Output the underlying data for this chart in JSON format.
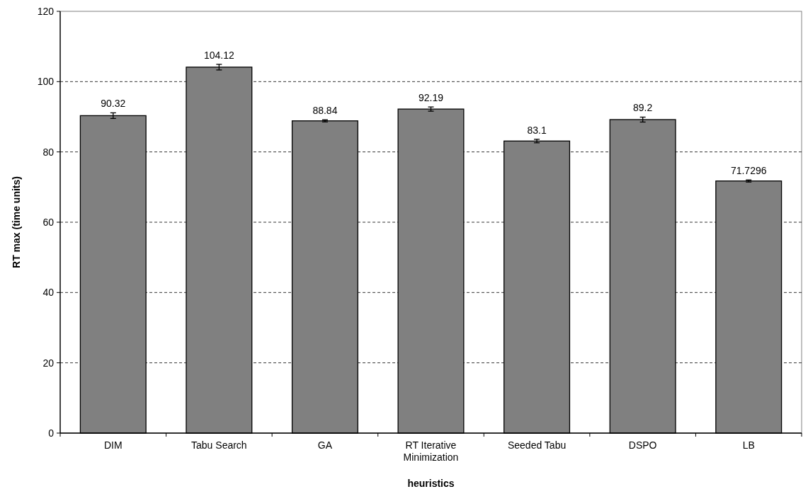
{
  "chart_data": {
    "type": "bar",
    "xlabel": "heuristics",
    "ylabel": "RT max (time units)",
    "categories": [
      "DIM",
      "Tabu Search",
      "GA",
      "RT Iterative Minimization",
      "Seeded Tabu",
      "DSPO",
      "LB"
    ],
    "values": [
      90.32,
      104.12,
      88.84,
      92.19,
      83.1,
      89.2,
      71.7296
    ],
    "errors": [
      0.8,
      0.8,
      0.3,
      0.6,
      0.5,
      0.7,
      0.3
    ],
    "color": "#808080",
    "data_labels": true,
    "grid": "y",
    "ylim": [
      0,
      120
    ],
    "yticks": [
      0,
      20,
      40,
      60,
      80,
      100,
      120
    ]
  }
}
